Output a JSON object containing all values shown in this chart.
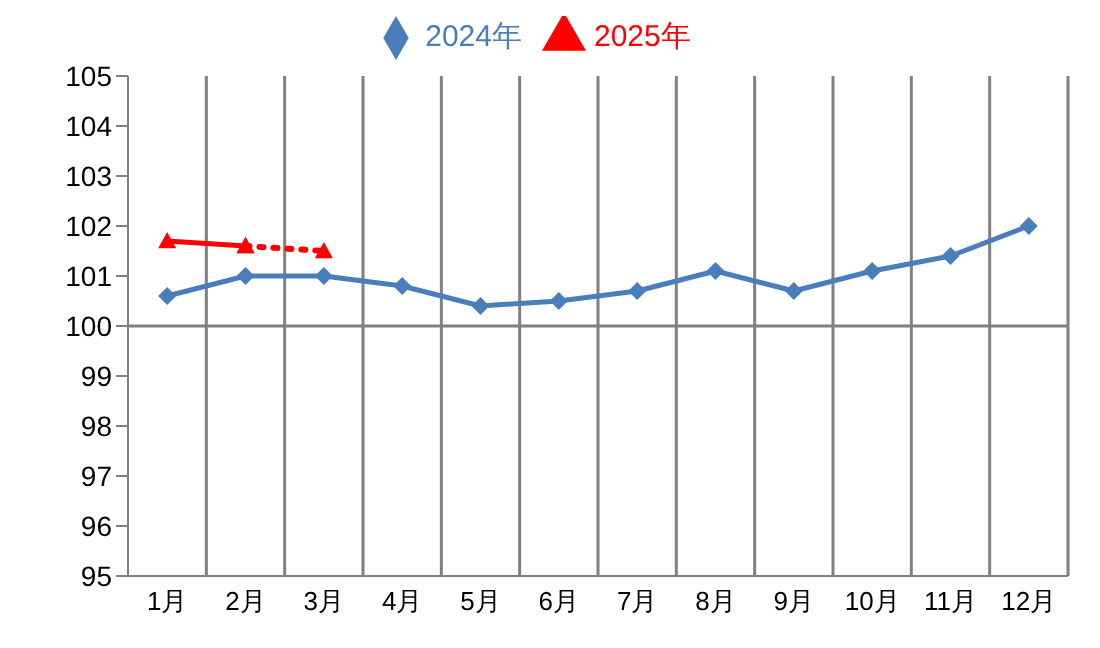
{
  "chart_data": {
    "type": "line",
    "categories": [
      "1月",
      "2月",
      "3月",
      "4月",
      "5月",
      "6月",
      "7月",
      "8月",
      "9月",
      "10月",
      "11月",
      "12月"
    ],
    "series": [
      {
        "name": "2024年",
        "color": "#4a7ebb",
        "marker": "diamond",
        "line_style": "solid",
        "values": [
          100.6,
          101.0,
          101.0,
          100.8,
          100.4,
          100.5,
          100.7,
          101.1,
          100.7,
          101.1,
          101.4,
          102.0
        ]
      },
      {
        "name": "2025年",
        "color": "#ff0000",
        "marker": "triangle",
        "line_style": "solid",
        "values": [
          101.7,
          101.6,
          null,
          null,
          null,
          null,
          null,
          null,
          null,
          null,
          null,
          null
        ]
      },
      {
        "color": "#ff0000",
        "marker": "triangle",
        "line_style": "dotted",
        "values": [
          null,
          101.6,
          101.5,
          null,
          null,
          null,
          null,
          null,
          null,
          null,
          null,
          null
        ]
      }
    ],
    "ylim": [
      95,
      105
    ],
    "yticks": [
      95,
      96,
      97,
      98,
      99,
      100,
      101,
      102,
      103,
      104,
      105
    ],
    "grid": "x",
    "legend": "top",
    "ref_lines": [
      {
        "axis": "y",
        "value": 100,
        "color": "#808080"
      }
    ]
  }
}
